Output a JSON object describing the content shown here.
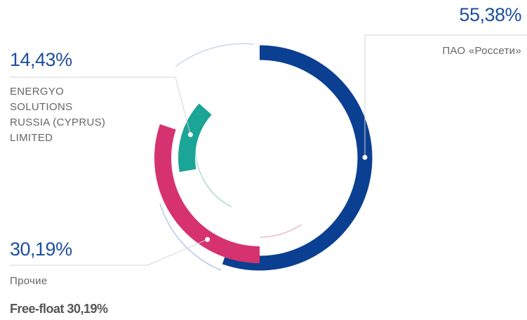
{
  "chart_data": {
    "type": "pie",
    "categories": [
      "ПАО «Россети»",
      "ENERGYO\nSOLUTIONS\nRUSSIA (CYPRUS)\nLIMITED",
      "Прочие"
    ],
    "values": [
      55.38,
      14.43,
      30.19
    ],
    "value_labels": [
      "55,38%",
      "14,43%",
      "30,19%"
    ],
    "colors": [
      "#0b3f91",
      "#1aa596",
      "#d63270"
    ],
    "annotation": "Free-float 30,19%"
  }
}
